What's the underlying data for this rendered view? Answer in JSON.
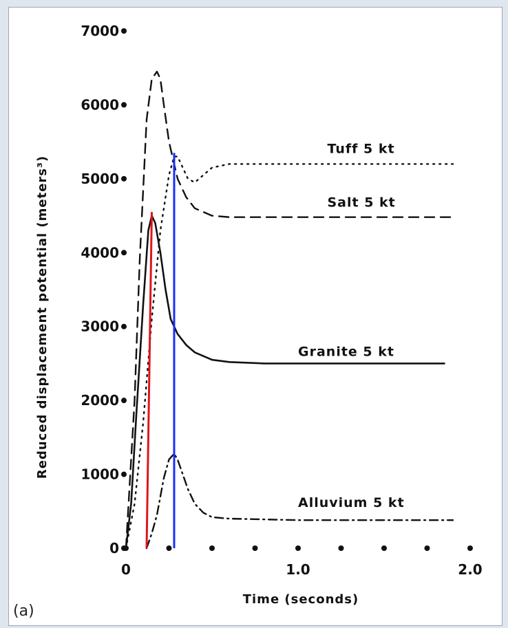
{
  "chart_data": {
    "type": "line",
    "title": "",
    "xlabel": "Time (seconds)",
    "ylabel": "Reduced displacement potential (meters³)",
    "xlim": [
      0,
      2.0
    ],
    "ylim": [
      0,
      7000
    ],
    "x_ticks": [
      {
        "value": 0,
        "label": "0"
      },
      {
        "value": 1.0,
        "label": "1.0"
      },
      {
        "value": 2.0,
        "label": "2.0"
      }
    ],
    "x_dots": [
      0.25,
      0.5,
      0.75,
      1.25,
      1.5,
      1.75
    ],
    "y_ticks": [
      {
        "value": 0,
        "label": "0"
      },
      {
        "value": 1000,
        "label": "1000"
      },
      {
        "value": 2000,
        "label": "2000"
      },
      {
        "value": 3000,
        "label": "3000"
      },
      {
        "value": 4000,
        "label": "4000"
      },
      {
        "value": 5000,
        "label": "5000"
      },
      {
        "value": 6000,
        "label": "6000"
      },
      {
        "value": 7000,
        "label": "7000"
      }
    ],
    "series": [
      {
        "name": "Tuff 5 kt",
        "style": "dotted",
        "label_at": [
          1.17,
          5350
        ],
        "x": [
          0,
          0.05,
          0.1,
          0.15,
          0.2,
          0.25,
          0.28,
          0.3,
          0.33,
          0.36,
          0.4,
          0.45,
          0.5,
          0.6,
          0.8,
          1.0,
          1.5,
          1.9
        ],
        "y": [
          0,
          600,
          1700,
          3100,
          4300,
          5050,
          5300,
          5300,
          5150,
          5000,
          4950,
          5050,
          5150,
          5200,
          5200,
          5200,
          5200,
          5200
        ]
      },
      {
        "name": "Salt 5 kt",
        "style": "dashed",
        "label_at": [
          1.17,
          4620
        ],
        "x": [
          0,
          0.05,
          0.08,
          0.12,
          0.15,
          0.18,
          0.2,
          0.22,
          0.25,
          0.3,
          0.35,
          0.4,
          0.45,
          0.5,
          0.6,
          0.8,
          1.0,
          1.5,
          1.9
        ],
        "y": [
          0,
          2000,
          3900,
          5800,
          6350,
          6450,
          6350,
          6000,
          5500,
          5000,
          4750,
          4600,
          4550,
          4500,
          4480,
          4480,
          4480,
          4480,
          4480
        ]
      },
      {
        "name": "Granite 5 kt",
        "style": "solid",
        "label_at": [
          1.0,
          2600
        ],
        "x": [
          0,
          0.03,
          0.06,
          0.1,
          0.13,
          0.15,
          0.17,
          0.2,
          0.23,
          0.26,
          0.3,
          0.35,
          0.4,
          0.5,
          0.6,
          0.8,
          1.0,
          1.5,
          1.85
        ],
        "y": [
          0,
          600,
          1800,
          3300,
          4300,
          4500,
          4400,
          4000,
          3500,
          3100,
          2900,
          2750,
          2650,
          2550,
          2520,
          2500,
          2500,
          2500,
          2500
        ]
      },
      {
        "name": "Alluvium 5 kt",
        "style": "dashdot",
        "label_at": [
          1.0,
          560
        ],
        "x": [
          0.12,
          0.15,
          0.18,
          0.2,
          0.22,
          0.25,
          0.28,
          0.3,
          0.33,
          0.36,
          0.4,
          0.45,
          0.5,
          0.6,
          0.8,
          1.0,
          1.2,
          1.5,
          1.9
        ],
        "y": [
          0,
          200,
          450,
          700,
          950,
          1200,
          1280,
          1200,
          1000,
          800,
          600,
          480,
          420,
          400,
          390,
          380,
          380,
          380,
          380
        ]
      }
    ],
    "markers": [
      {
        "color": "#e0141b",
        "x1": 0.12,
        "y1": 0,
        "x2": 0.15,
        "y2": 4550
      },
      {
        "color": "#1a2cff",
        "x1": 0.28,
        "y1": 0,
        "x2": 0.28,
        "y2": 5350
      }
    ]
  },
  "panel_label": "(a)"
}
